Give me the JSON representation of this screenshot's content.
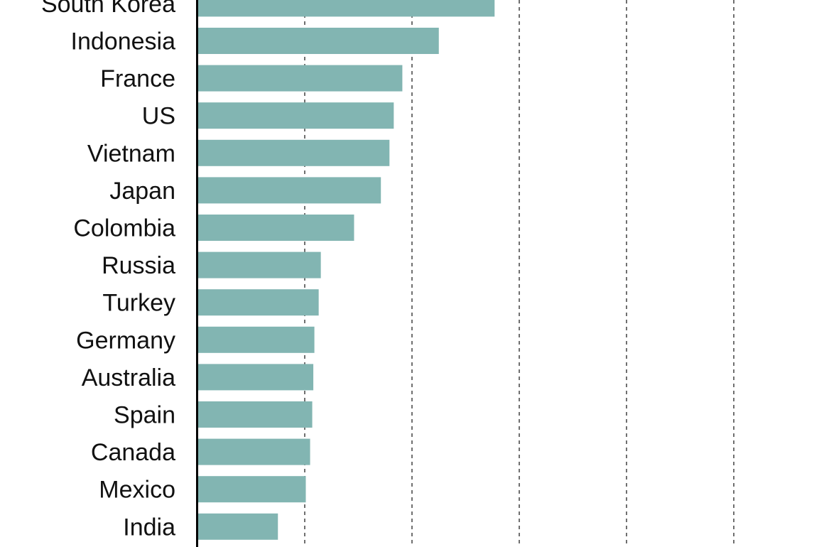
{
  "chart_data": {
    "type": "bar",
    "orientation": "horizontal",
    "title": "",
    "xlabel": "",
    "ylabel": "",
    "categories": [
      "South Korea",
      "Indonesia",
      "France",
      "US",
      "Vietnam",
      "Japan",
      "Colombia",
      "Russia",
      "Turkey",
      "Germany",
      "Australia",
      "Spain",
      "Canada",
      "Mexico",
      "India"
    ],
    "values": [
      27.7,
      22.5,
      19.1,
      18.3,
      17.9,
      17.1,
      14.6,
      11.5,
      11.3,
      10.9,
      10.8,
      10.7,
      10.5,
      10.1,
      7.5
    ],
    "xlim": [
      0,
      58.5
    ],
    "gridlines": [
      10,
      20,
      30,
      40,
      50
    ],
    "grid": "vertical-dashed",
    "note": "values in gridline units (gridline spacing = 10); no tick labels visible",
    "bar_color": "#82b5b2"
  }
}
